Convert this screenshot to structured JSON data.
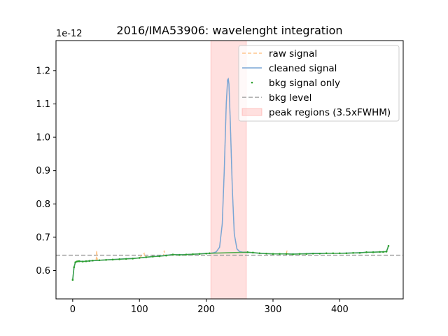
{
  "chart_data": {
    "type": "line",
    "title": "2016/IMA53906: wavelenght integration",
    "xlabel": "",
    "ylabel": "",
    "y_offset_label": "1e-12",
    "xlim": [
      -25,
      495
    ],
    "ylim": [
      0.515,
      1.29
    ],
    "x_ticks": [
      0,
      100,
      200,
      300,
      400
    ],
    "y_ticks": [
      0.6,
      0.7,
      0.8,
      0.9,
      1.0,
      1.1,
      1.2
    ],
    "x_tick_labels": [
      "0",
      "100",
      "200",
      "300",
      "400"
    ],
    "y_tick_labels": [
      "0.6",
      "0.7",
      "0.8",
      "0.9",
      "1.0",
      "1.1",
      "1.2"
    ],
    "grid": false,
    "legend_position": "top-right",
    "colors": {
      "raw": "#ffbb78",
      "cleaned": "#7aa6d6",
      "bkg_points": "#2ca02c",
      "bkg_level": "#a0a0a0",
      "peak_region": "#ff9896"
    },
    "peak_region": [
      207,
      260
    ],
    "bkg_level": 0.646,
    "series": [
      {
        "name": "raw signal",
        "style": "dashed",
        "x": [
          0,
          2,
          4,
          6,
          10,
          20,
          35,
          36,
          37,
          50,
          100,
          107,
          108,
          109,
          120,
          136,
          137,
          138,
          150,
          170,
          190,
          200,
          206,
          210,
          215,
          220,
          224,
          227,
          230,
          232,
          233,
          234,
          236,
          239,
          242,
          246,
          250,
          255,
          260,
          280,
          300,
          320,
          321,
          322,
          340,
          360,
          400,
          420,
          440,
          460,
          470,
          473
        ],
        "values": [
          0.572,
          0.61,
          0.625,
          0.627,
          0.628,
          0.628,
          0.63,
          0.66,
          0.631,
          0.632,
          0.638,
          0.652,
          0.639,
          0.641,
          0.642,
          0.645,
          0.66,
          0.646,
          0.648,
          0.648,
          0.65,
          0.652,
          0.652,
          0.653,
          0.656,
          0.67,
          0.74,
          0.9,
          1.1,
          1.172,
          1.175,
          1.16,
          1.05,
          0.85,
          0.71,
          0.665,
          0.657,
          0.655,
          0.655,
          0.652,
          0.65,
          0.65,
          0.66,
          0.65,
          0.65,
          0.652,
          0.652,
          0.653,
          0.655,
          0.656,
          0.657,
          0.674
        ]
      },
      {
        "name": "cleaned signal",
        "style": "solid",
        "x": [
          0,
          2,
          4,
          6,
          10,
          20,
          50,
          100,
          120,
          150,
          170,
          190,
          200,
          206,
          210,
          215,
          220,
          224,
          227,
          230,
          232,
          233,
          234,
          236,
          239,
          242,
          246,
          250,
          255,
          260,
          280,
          300,
          340,
          360,
          400,
          420,
          440,
          460,
          470,
          473
        ],
        "values": [
          0.572,
          0.61,
          0.625,
          0.627,
          0.628,
          0.628,
          0.632,
          0.638,
          0.642,
          0.648,
          0.648,
          0.65,
          0.652,
          0.652,
          0.653,
          0.656,
          0.67,
          0.74,
          0.9,
          1.1,
          1.172,
          1.175,
          1.16,
          1.05,
          0.85,
          0.71,
          0.665,
          0.657,
          0.655,
          0.655,
          0.652,
          0.65,
          0.65,
          0.652,
          0.652,
          0.653,
          0.655,
          0.656,
          0.657,
          0.674
        ]
      },
      {
        "name": "bkg signal only",
        "style": "points",
        "x": [
          0,
          2,
          4,
          6,
          8,
          10,
          15,
          20,
          25,
          30,
          40,
          50,
          60,
          70,
          80,
          90,
          100,
          110,
          120,
          130,
          140,
          150,
          160,
          170,
          180,
          190,
          200,
          205,
          262,
          270,
          280,
          290,
          300,
          310,
          320,
          330,
          340,
          350,
          360,
          370,
          380,
          390,
          400,
          410,
          420,
          430,
          440,
          450,
          460,
          465,
          470,
          473
        ],
        "values": [
          0.572,
          0.61,
          0.625,
          0.627,
          0.628,
          0.628,
          0.627,
          0.628,
          0.629,
          0.63,
          0.631,
          0.632,
          0.633,
          0.634,
          0.635,
          0.636,
          0.638,
          0.64,
          0.642,
          0.643,
          0.645,
          0.648,
          0.647,
          0.648,
          0.649,
          0.65,
          0.651,
          0.652,
          0.655,
          0.654,
          0.652,
          0.651,
          0.65,
          0.65,
          0.65,
          0.649,
          0.65,
          0.65,
          0.651,
          0.651,
          0.652,
          0.652,
          0.652,
          0.652,
          0.653,
          0.653,
          0.655,
          0.655,
          0.656,
          0.656,
          0.657,
          0.674
        ]
      },
      {
        "name": "bkg level",
        "style": "dashed-horizontal",
        "value": 0.646
      },
      {
        "name": "peak regions (3.5xFWHM)",
        "style": "span",
        "range": [
          207,
          260
        ]
      }
    ]
  }
}
